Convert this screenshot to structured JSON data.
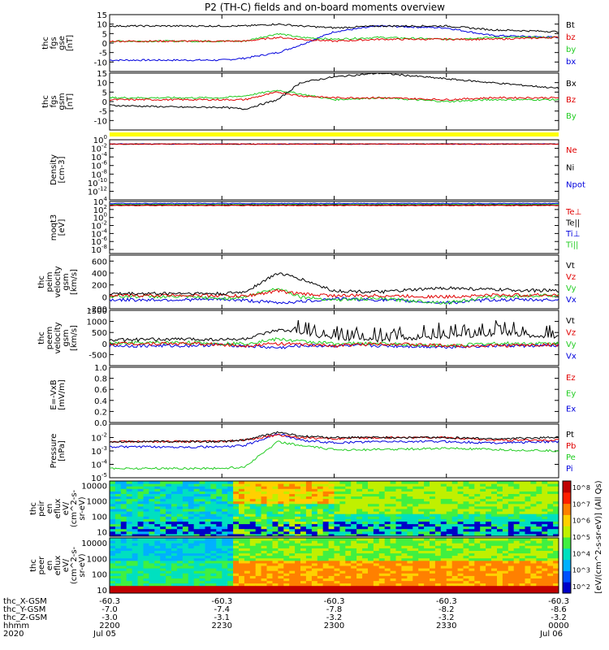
{
  "title": "P2 (TH-C) fields and on-board moments overview",
  "colors": {
    "black": "#000000",
    "red": "#e00000",
    "green": "#22cc22",
    "blue": "#0000dd",
    "yellow": "#ffff00"
  },
  "footer": {
    "rows": [
      {
        "label": "thc_X-GSM",
        "values": [
          "-60.3",
          "-60.3",
          "-60.3",
          "-60.3",
          "-60.3"
        ]
      },
      {
        "label": "thc_Y-GSM",
        "values": [
          "-7.0",
          "-7.4",
          "-7.8",
          "-8.2",
          "-8.6"
        ]
      },
      {
        "label": "thc_Z-GSM",
        "values": [
          "-3.0",
          "-3.1",
          "-3.2",
          "-3.2",
          "-3.2"
        ]
      },
      {
        "label": "hhmm",
        "values": [
          "2200",
          "2230",
          "2300",
          "2330",
          "0000"
        ]
      },
      {
        "label": "2020",
        "values": [
          "Jul 05",
          "",
          "",
          "",
          "Jul 06"
        ]
      }
    ]
  },
  "chart_data": [
    {
      "type": "line",
      "id": "fgs_gse",
      "ylabel": [
        "thc",
        "fgs",
        "gse",
        "[nT]"
      ],
      "ylim": [
        -15,
        15
      ],
      "ticks": [
        -10,
        -5,
        0,
        5,
        10,
        15
      ],
      "series": [
        {
          "name": "Bt",
          "color": "black"
        },
        {
          "name": "bz",
          "color": "red"
        },
        {
          "name": "by",
          "color": "green"
        },
        {
          "name": "bx",
          "color": "blue"
        }
      ],
      "x_hours": [
        0,
        0.33,
        0.5,
        0.6,
        0.75,
        0.85,
        1.0,
        1.2,
        1.5,
        1.7,
        2.0
      ],
      "values": {
        "Bt": [
          9,
          9,
          9,
          9,
          10,
          9,
          8,
          9,
          9,
          7,
          6
        ],
        "bz": [
          1,
          1,
          1,
          1,
          3,
          2,
          1,
          2,
          2,
          2,
          3
        ],
        "by": [
          1,
          1,
          1,
          1,
          5,
          3,
          2,
          3,
          2,
          3,
          3
        ],
        "bx": [
          -9,
          -9,
          -9,
          -8,
          -5,
          -1,
          6,
          9,
          8,
          4,
          3
        ]
      }
    },
    {
      "type": "line",
      "id": "fgs_gsm",
      "ylabel": [
        "thc",
        "fgs",
        "gsm",
        "[nT]"
      ],
      "ylim": [
        -15,
        15
      ],
      "ticks": [
        -10,
        -5,
        0,
        5,
        10,
        15
      ],
      "series": [
        {
          "name": "Bx",
          "color": "black"
        },
        {
          "name": "Bz",
          "color": "red"
        },
        {
          "name": "By",
          "color": "green"
        }
      ],
      "x_hours": [
        0,
        0.33,
        0.5,
        0.6,
        0.75,
        0.85,
        1.0,
        1.2,
        1.5,
        1.7,
        2.0
      ],
      "values": {
        "Bx": [
          -2,
          -3,
          -3,
          -4,
          1,
          10,
          13,
          15,
          12,
          10,
          7
        ],
        "Bz": [
          1,
          1,
          1,
          1,
          5,
          3,
          2,
          2,
          1,
          2,
          2
        ],
        "By": [
          2,
          2,
          2,
          3,
          6,
          4,
          1,
          2,
          0,
          1,
          1
        ]
      }
    },
    {
      "type": "line",
      "id": "density",
      "ylabel": [
        "Density",
        "[cm-3]"
      ],
      "log": true,
      "ylim": [
        -14,
        0
      ],
      "ticks": [
        -12,
        -10,
        -8,
        -6,
        -4,
        -2,
        0
      ],
      "series": [
        {
          "name": "Ne",
          "color": "red"
        },
        {
          "name": "Ni",
          "color": "black"
        },
        {
          "name": "Npot",
          "color": "blue"
        }
      ],
      "values": {
        "Ne": -1,
        "Ni": -1,
        "Npot": -1
      }
    },
    {
      "type": "line",
      "id": "temp",
      "ylabel": [
        "moqt3",
        "[eV]"
      ],
      "log": true,
      "ylim": [
        -9,
        4
      ],
      "ticks": [
        -8,
        -6,
        -4,
        -2,
        0,
        2,
        4
      ],
      "series": [
        {
          "name": "Te⊥",
          "color": "red"
        },
        {
          "name": "Te||",
          "color": "black"
        },
        {
          "name": "Ti⊥",
          "color": "blue"
        },
        {
          "name": "Ti||",
          "color": "green"
        }
      ],
      "values": {
        "Te⊥": 3.0,
        "Te||": 3.1,
        "Ti⊥": 3.5,
        "Ti||": 3.3
      }
    },
    {
      "type": "line",
      "id": "peim_vel",
      "ylabel": [
        "thc",
        "peim",
        "velocity",
        "gsm",
        "[km/s]"
      ],
      "ylim": [
        -200,
        700
      ],
      "ticks": [
        -200,
        0,
        200,
        400,
        600
      ],
      "series": [
        {
          "name": "Vt",
          "color": "black"
        },
        {
          "name": "Vz",
          "color": "red"
        },
        {
          "name": "Vy",
          "color": "green"
        },
        {
          "name": "Vx",
          "color": "blue"
        }
      ],
      "x_hours": [
        0,
        0.33,
        0.5,
        0.6,
        0.75,
        0.85,
        1.0,
        1.2,
        1.5,
        1.7,
        2.0
      ],
      "values": {
        "Vt": [
          50,
          60,
          50,
          80,
          400,
          300,
          100,
          80,
          150,
          120,
          100
        ],
        "Vz": [
          20,
          30,
          20,
          10,
          100,
          50,
          20,
          20,
          0,
          30,
          30
        ],
        "Vy": [
          10,
          0,
          -30,
          0,
          150,
          0,
          -50,
          -30,
          -100,
          0,
          30
        ],
        "Vx": [
          -50,
          -50,
          -40,
          -60,
          -100,
          -80,
          -30,
          -50,
          -100,
          -50,
          -50
        ]
      }
    },
    {
      "type": "line",
      "id": "peem_vel",
      "ylabel": [
        "thc",
        "peem",
        "velocity",
        "gsm",
        "[km/s]"
      ],
      "ylim": [
        -1000,
        1500
      ],
      "ticks": [
        -500,
        0,
        500,
        1000,
        1500
      ],
      "series": [
        {
          "name": "Vt",
          "color": "black"
        },
        {
          "name": "Vz",
          "color": "red"
        },
        {
          "name": "Vy",
          "color": "green"
        },
        {
          "name": "Vx",
          "color": "blue"
        }
      ],
      "x_hours": [
        0,
        0.33,
        0.5,
        0.6,
        0.75,
        0.85,
        1.0,
        1.2,
        1.5,
        1.7,
        2.0
      ],
      "values": {
        "Vt": [
          150,
          200,
          180,
          200,
          600,
          500,
          200,
          150,
          300,
          400,
          300
        ],
        "Vz": [
          0,
          0,
          -50,
          -100,
          0,
          -50,
          -100,
          0,
          -100,
          -100,
          -50
        ],
        "Vy": [
          0,
          50,
          0,
          0,
          200,
          100,
          0,
          0,
          -100,
          0,
          0
        ],
        "Vx": [
          -100,
          -100,
          -50,
          -100,
          -200,
          -100,
          -100,
          -100,
          -150,
          -100,
          -100
        ]
      }
    },
    {
      "type": "line",
      "id": "efield",
      "ylabel": [
        "E=-VxB",
        "[mV/m]"
      ],
      "ylim": [
        0,
        1.0
      ],
      "ticks": [
        0.0,
        0.2,
        0.4,
        0.6,
        0.8,
        1.0
      ],
      "series": [
        {
          "name": "Ez",
          "color": "red"
        },
        {
          "name": "Ey",
          "color": "green"
        },
        {
          "name": "Ex",
          "color": "blue"
        }
      ],
      "values": {}
    },
    {
      "type": "line",
      "id": "pressure",
      "ylabel": [
        "Pressure",
        "[nPa]"
      ],
      "log": true,
      "ylim": [
        -5,
        -1
      ],
      "ticks": [
        -5,
        -4,
        -3,
        -2
      ],
      "series": [
        {
          "name": "Pt",
          "color": "black"
        },
        {
          "name": "Pb",
          "color": "red"
        },
        {
          "name": "Pe",
          "color": "green"
        },
        {
          "name": "Pi",
          "color": "blue"
        }
      ],
      "x_hours": [
        0,
        0.33,
        0.5,
        0.6,
        0.75,
        0.85,
        1.0,
        1.2,
        1.5,
        1.7,
        2.0
      ],
      "values": {
        "Pt": [
          -2.3,
          -2.3,
          -2.3,
          -2.2,
          -1.6,
          -1.9,
          -2.0,
          -2.0,
          -2.0,
          -2.1,
          -2.0
        ],
        "Pb": [
          -2.3,
          -2.3,
          -2.3,
          -2.2,
          -1.8,
          -2.0,
          -2.1,
          -2.0,
          -2.0,
          -2.2,
          -2.2
        ],
        "Pe": [
          -4.3,
          -4.3,
          -4.3,
          -4.2,
          -2.3,
          -2.6,
          -2.9,
          -2.9,
          -2.8,
          -2.9,
          -3.0
        ],
        "Pi": [
          -2.7,
          -2.7,
          -2.7,
          -2.6,
          -1.7,
          -2.2,
          -2.4,
          -2.3,
          -2.3,
          -2.4,
          -2.3
        ]
      }
    },
    {
      "type": "heatmap",
      "id": "peir",
      "ylabel": [
        "thc",
        "peir",
        "en",
        "eflux",
        "eV/",
        "(cm^2-s-",
        "sr-eV)"
      ],
      "log": true,
      "ylim": [
        0.7,
        4.3
      ],
      "ticks": [
        1,
        2,
        3,
        4
      ],
      "ticklabels": [
        "10",
        "100",
        "1000",
        "10000"
      ]
    },
    {
      "type": "heatmap",
      "id": "peer",
      "ylabel": [
        "thc",
        "peer",
        "en",
        "eflux",
        "eV/",
        "(cm^2-s-",
        "sr-eV)"
      ],
      "log": true,
      "ylim": [
        0.8,
        4.3
      ],
      "ticks": [
        1,
        2,
        3,
        4
      ],
      "ticklabels": [
        "10",
        "100",
        "1000",
        "10000"
      ]
    }
  ],
  "colorbar": {
    "label": "[eV/(cm^2-s-sr-eV)] (All Qs)",
    "ticks": [
      "10^2",
      "10^3",
      "10^4",
      "10^5",
      "10^6",
      "10^7",
      "10^8"
    ]
  },
  "xaxis": {
    "range_hours": [
      0,
      2
    ]
  }
}
